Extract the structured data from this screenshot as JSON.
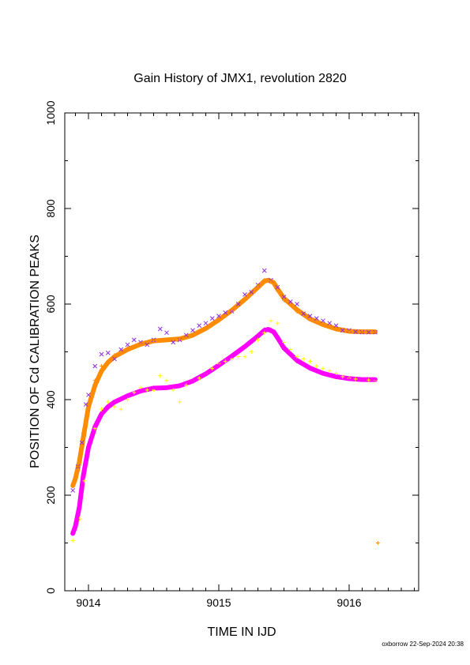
{
  "chart_data": {
    "type": "scatter",
    "title": "Gain History of JMX1, revolution 2820",
    "xlabel": "TIME IN IJD",
    "ylabel": "POSITION OF Cd CALIBRATION PEAKS",
    "xlim": [
      9013.8,
      9016.5
    ],
    "ylim": [
      0,
      1000
    ],
    "x_ticks": [
      "9014",
      "9015",
      "9016"
    ],
    "y_ticks": [
      "0",
      "200",
      "400",
      "600",
      "800",
      "1000"
    ],
    "grid": false,
    "legend": "none",
    "footer": "oxborrow 22-Sep-2024 20:38",
    "series": [
      {
        "marker": "x",
        "color": "#8a2be2",
        "x": [
          9013.88,
          9013.92,
          9013.95,
          9013.98,
          9014.0,
          9014.05,
          9014.1,
          9014.15,
          9014.2,
          9014.25,
          9014.3,
          9014.35,
          9014.4,
          9014.45,
          9014.5,
          9014.55,
          9014.6,
          9014.65,
          9014.7,
          9014.75,
          9014.8,
          9014.85,
          9014.9,
          9014.95,
          9015.0,
          9015.05,
          9015.1,
          9015.15,
          9015.2,
          9015.25,
          9015.3,
          9015.35,
          9015.4,
          9015.45,
          9015.5,
          9015.55,
          9015.6,
          9015.65,
          9015.7,
          9015.75,
          9015.8,
          9015.85,
          9015.9,
          9015.95,
          9016.0,
          9016.05,
          9016.1,
          9016.15,
          9016.2
        ],
        "y": [
          210,
          260,
          310,
          390,
          410,
          470,
          495,
          498,
          485,
          505,
          515,
          525,
          520,
          515,
          525,
          548,
          540,
          520,
          525,
          535,
          545,
          555,
          560,
          570,
          575,
          582,
          585,
          600,
          620,
          625,
          640,
          670,
          650,
          635,
          615,
          605,
          600,
          580,
          575,
          570,
          565,
          560,
          555,
          545,
          545,
          542,
          541,
          541,
          541
        ]
      },
      {
        "marker": "+",
        "color": "#ff8c00",
        "x": [
          9013.88,
          9013.92,
          9013.96,
          9014.0,
          9014.05,
          9014.1,
          9014.2,
          9014.3,
          9014.4,
          9014.5,
          9014.6,
          9014.7,
          9014.8,
          9014.9,
          9015.0,
          9015.1,
          9015.2,
          9015.3,
          9015.35,
          9015.4,
          9015.45,
          9015.5,
          9015.6,
          9015.7,
          9015.8,
          9015.9,
          9016.0,
          9016.1,
          9016.2,
          9016.22
        ],
        "y": [
          220,
          260,
          330,
          390,
          440,
          470,
          493,
          508,
          517,
          524,
          525,
          527,
          535,
          550,
          568,
          588,
          612,
          638,
          650,
          648,
          628,
          608,
          584,
          568,
          558,
          547,
          543,
          542,
          542,
          100
        ]
      },
      {
        "marker": "+",
        "color": "#ffff00",
        "x": [
          9013.88,
          9013.93,
          9013.97,
          9014.0,
          9014.05,
          9014.1,
          9014.15,
          9014.2,
          9014.25,
          9014.3,
          9014.35,
          9014.4,
          9014.45,
          9014.5,
          9014.55,
          9014.6,
          9014.65,
          9014.7,
          9014.75,
          9014.8,
          9014.85,
          9014.9,
          9014.95,
          9015.0,
          9015.05,
          9015.1,
          9015.15,
          9015.2,
          9015.25,
          9015.3,
          9015.35,
          9015.4,
          9015.45,
          9015.5,
          9015.55,
          9015.6,
          9015.65,
          9015.7,
          9015.75,
          9015.8,
          9015.85,
          9015.9,
          9015.95,
          9016.0,
          9016.05,
          9016.1,
          9016.15,
          9016.2
        ],
        "y": [
          105,
          150,
          230,
          300,
          340,
          380,
          395,
          385,
          380,
          400,
          415,
          425,
          420,
          420,
          450,
          440,
          420,
          395,
          430,
          440,
          445,
          455,
          465,
          475,
          480,
          485,
          490,
          490,
          500,
          525,
          540,
          565,
          560,
          520,
          505,
          490,
          485,
          480,
          470,
          465,
          460,
          455,
          448,
          445,
          443,
          442,
          441,
          441
        ]
      },
      {
        "marker": "+",
        "color": "#ff00ff",
        "x": [
          9013.88,
          9013.92,
          9013.95,
          9013.98,
          9014.0,
          9014.05,
          9014.1,
          9014.15,
          9014.2,
          9014.3,
          9014.4,
          9014.5,
          9014.6,
          9014.7,
          9014.8,
          9014.9,
          9015.0,
          9015.1,
          9015.2,
          9015.3,
          9015.35,
          9015.4,
          9015.45,
          9015.5,
          9015.6,
          9015.7,
          9015.8,
          9015.9,
          9016.0,
          9016.1,
          9016.2
        ],
        "y": [
          120,
          150,
          210,
          270,
          300,
          345,
          370,
          385,
          395,
          408,
          418,
          425,
          425,
          430,
          440,
          455,
          473,
          492,
          512,
          535,
          547,
          547,
          528,
          505,
          480,
          465,
          455,
          447,
          443,
          442,
          442
        ]
      }
    ],
    "fit_curves": [
      {
        "color": "#ff8c00",
        "x": [
          9013.88,
          9013.9,
          9013.93,
          9013.96,
          9014.0,
          9014.05,
          9014.1,
          9014.15,
          9014.2,
          9014.3,
          9014.4,
          9014.5,
          9014.6,
          9014.7,
          9014.8,
          9014.9,
          9015.0,
          9015.1,
          9015.2,
          9015.3,
          9015.35,
          9015.38,
          9015.42,
          9015.45,
          9015.5,
          9015.6,
          9015.7,
          9015.8,
          9015.9,
          9016.0,
          9016.1,
          9016.2
        ],
        "y": [
          220,
          235,
          270,
          320,
          385,
          430,
          460,
          478,
          490,
          505,
          516,
          523,
          525,
          527,
          535,
          549,
          567,
          587,
          610,
          635,
          648,
          650,
          645,
          632,
          612,
          588,
          569,
          557,
          548,
          543,
          542,
          542
        ]
      },
      {
        "color": "#ff00ff",
        "x": [
          9013.88,
          9013.9,
          9013.93,
          9013.96,
          9014.0,
          9014.05,
          9014.1,
          9014.15,
          9014.2,
          9014.3,
          9014.4,
          9014.5,
          9014.6,
          9014.7,
          9014.8,
          9014.9,
          9015.0,
          9015.1,
          9015.2,
          9015.3,
          9015.35,
          9015.38,
          9015.42,
          9015.45,
          9015.5,
          9015.6,
          9015.7,
          9015.8,
          9015.9,
          9016.0,
          9016.1,
          9016.2
        ],
        "y": [
          120,
          135,
          175,
          240,
          300,
          343,
          370,
          385,
          395,
          408,
          418,
          424,
          425,
          429,
          439,
          454,
          472,
          491,
          511,
          533,
          545,
          547,
          542,
          530,
          508,
          482,
          466,
          455,
          448,
          444,
          442,
          442
        ]
      }
    ]
  }
}
